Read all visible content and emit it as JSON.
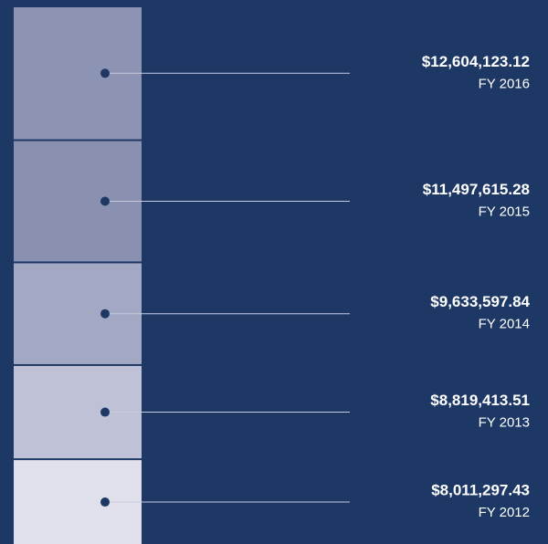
{
  "chart_data": {
    "type": "stacked_column",
    "categories": [
      "FY 2016",
      "FY 2015",
      "FY 2014",
      "FY 2013",
      "FY 2012"
    ],
    "values": [
      12604123.12,
      11497615.28,
      9633597.84,
      8819413.51,
      8011297.43
    ],
    "value_labels": [
      "$12,604,123.12",
      "$11,497,615.28",
      "$9,633,597.84",
      "$8,819,413.51",
      "$8,011,297.43"
    ],
    "colors": [
      "#8c93b3",
      "#8a91b0",
      "#a3a8c4",
      "#bfc2d6",
      "#dfe0ea"
    ]
  }
}
